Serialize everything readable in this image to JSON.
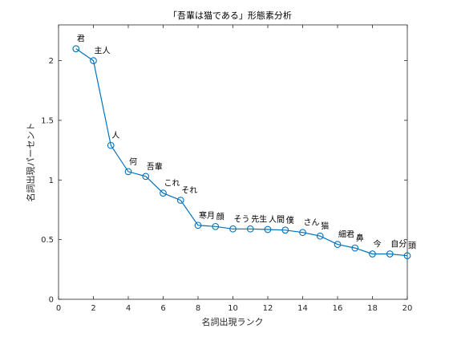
{
  "chart_data": {
    "type": "line",
    "title": "「吾輩は猫である」形態素分析",
    "xlabel": "名詞出現ランク",
    "ylabel": "名詞出現パーセント",
    "xlim": [
      0,
      20
    ],
    "ylim": [
      0,
      2.3
    ],
    "xticks": [
      "0",
      "2",
      "4",
      "6",
      "8",
      "10",
      "12",
      "14",
      "16",
      "18",
      "20"
    ],
    "yticks": [
      "0",
      "0.5",
      "1",
      "1.5",
      "2"
    ],
    "grid": false,
    "marker": "circle",
    "line_color": "#0072BD",
    "x": [
      1,
      2,
      3,
      4,
      5,
      6,
      7,
      8,
      9,
      10,
      11,
      12,
      13,
      14,
      15,
      16,
      17,
      18,
      19,
      20
    ],
    "y": [
      2.1,
      2.0,
      1.29,
      1.07,
      1.03,
      0.89,
      0.83,
      0.62,
      0.61,
      0.59,
      0.59,
      0.585,
      0.58,
      0.56,
      0.53,
      0.46,
      0.43,
      0.38,
      0.38,
      0.365
    ],
    "labels": [
      "君",
      "主人",
      "人",
      "何",
      "吾輩",
      "これ",
      "それ",
      "寒月",
      "顔",
      "そう",
      "先生",
      "人間",
      "僕",
      "さん",
      "猫",
      "細君",
      "鼻",
      "今",
      "自分",
      "頭"
    ]
  }
}
